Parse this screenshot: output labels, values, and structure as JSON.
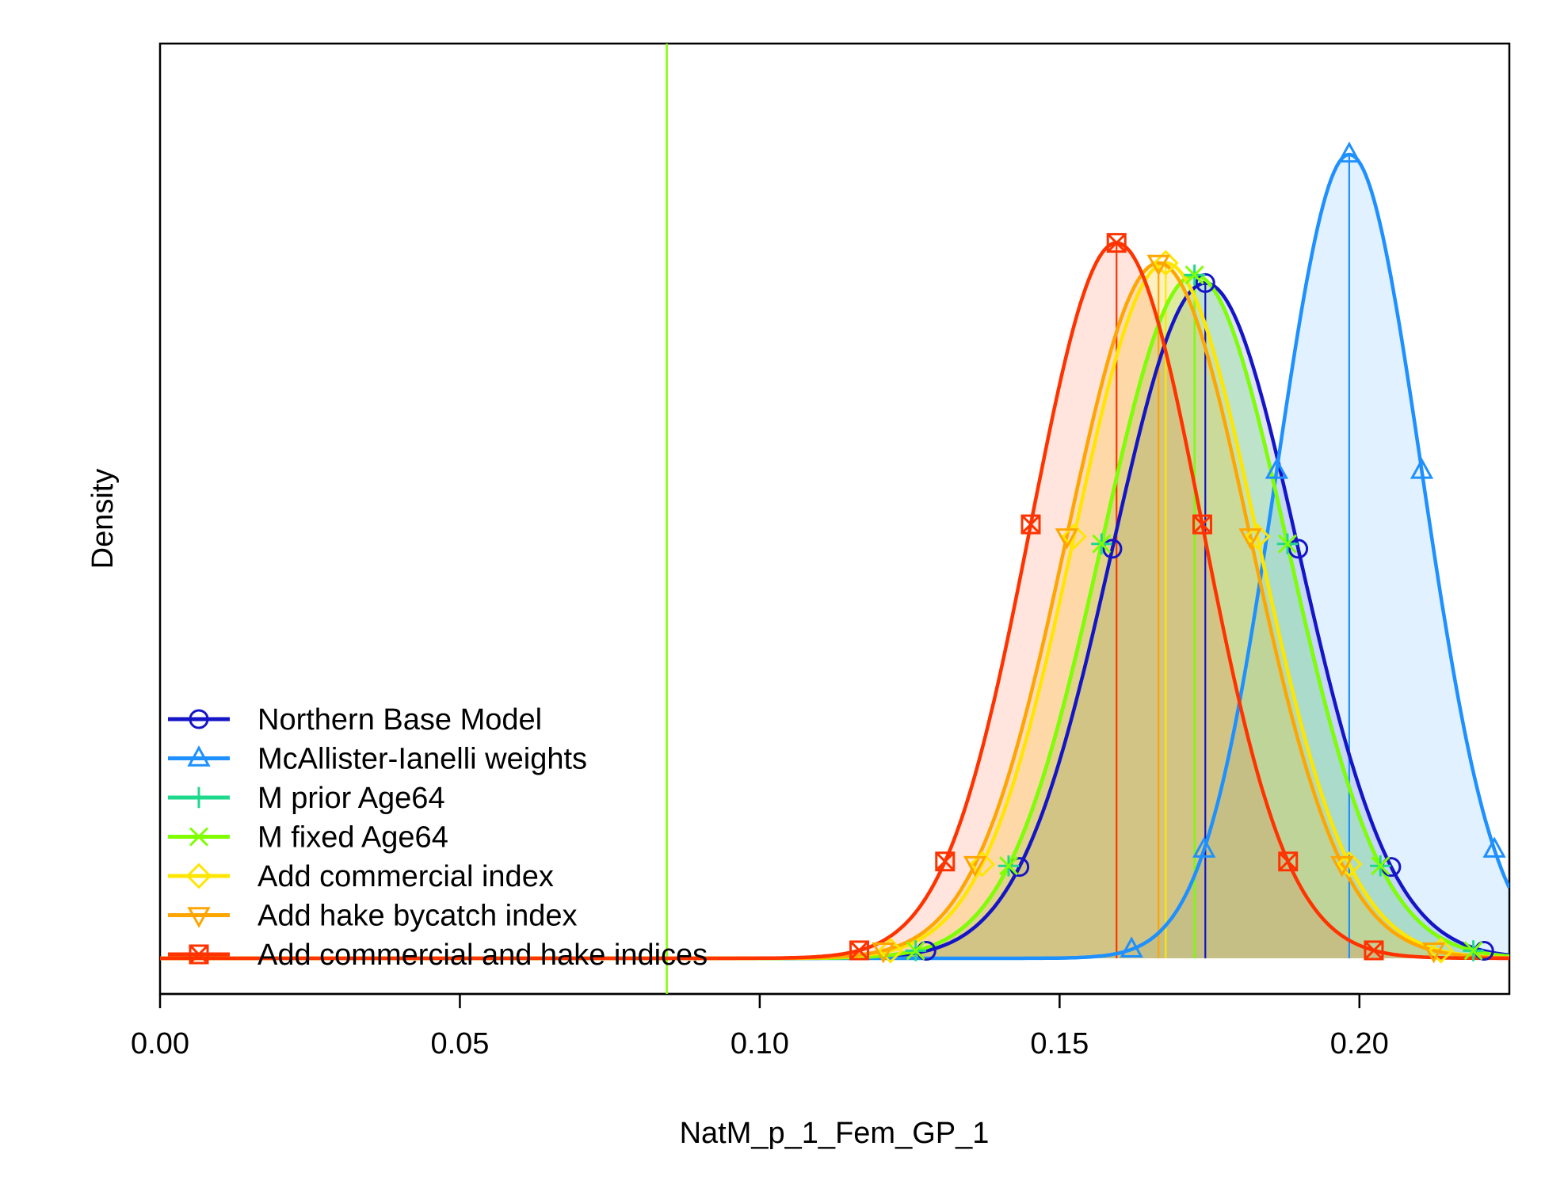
{
  "chart_data": {
    "type": "area",
    "xlabel": "NatM_p_1_Fem_GP_1",
    "ylabel": "Density",
    "xlim": [
      0.0,
      0.225
    ],
    "x_ticks": [
      0.0,
      0.05,
      0.1,
      0.15,
      0.2
    ],
    "x_tick_labels": [
      "0.00",
      "0.05",
      "0.10",
      "0.15",
      "0.20"
    ],
    "y_ticks_shown": false,
    "grid": false,
    "legend_position": "bottom-left",
    "prior_line": {
      "x": 0.0845,
      "color": "#7FFF00"
    },
    "series": [
      {
        "name": "Northern Base Model",
        "color": "#1515C8",
        "marker": "circle",
        "mean": 0.1743,
        "sd": 0.0155,
        "peak": 0.84
      },
      {
        "name": "McAllister-Ianelli weights",
        "color": "#1E90FF",
        "marker": "triangle",
        "mean": 0.1983,
        "sd": 0.0121,
        "peak": 1.0
      },
      {
        "name": "M prior Age64",
        "color": "#1ED98C",
        "marker": "plus",
        "mean": 0.1725,
        "sd": 0.0155,
        "peak": 0.85
      },
      {
        "name": "M fixed Age64",
        "color": "#7FFF00",
        "marker": "x",
        "mean": 0.1725,
        "sd": 0.0155,
        "peak": 0.85
      },
      {
        "name": "Add commercial index",
        "color": "#FFE600",
        "marker": "diamond",
        "mean": 0.1677,
        "sd": 0.0153,
        "peak": 0.865
      },
      {
        "name": "Add hake bycatch index",
        "color": "#FFA500",
        "marker": "triangle-down",
        "mean": 0.1665,
        "sd": 0.0153,
        "peak": 0.865
      },
      {
        "name": "Add commercial and hake indices",
        "color": "#FF3300",
        "marker": "square-x",
        "mean": 0.1595,
        "sd": 0.0143,
        "peak": 0.89
      }
    ]
  }
}
